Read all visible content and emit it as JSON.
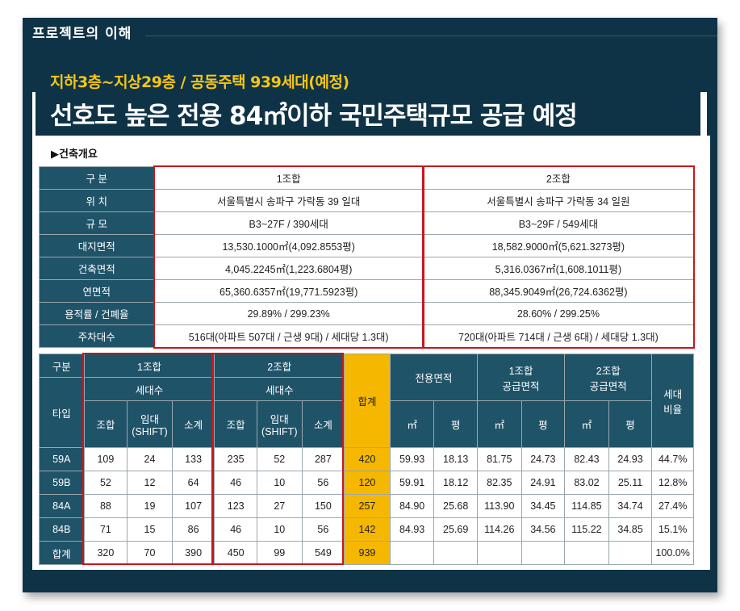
{
  "section_label": "프로젝트의 이해",
  "subtitle": "지하3층~지상29층 / 공동주택 939세대(예정)",
  "title": "선호도 높은 전용 84㎡이하 국민주택규모 공급 예정",
  "overview_heading": "▶건축개요",
  "overview": {
    "header": {
      "label": "구 분",
      "col1": "1조합",
      "col2": "2조합"
    },
    "rows": [
      {
        "label": "위 치",
        "col1": "서울특별시 송파구 가락동 39 일대",
        "col2": "서울특별시 송파구 가락동 34 일원"
      },
      {
        "label": "규 모",
        "col1": "B3~27F / 390세대",
        "col2": "B3~29F / 549세대"
      },
      {
        "label": "대지면적",
        "col1": "13,530.1000㎡(4,092.8553평)",
        "col2": "18,582.9000㎡(5,621.3273평)"
      },
      {
        "label": "건축면적",
        "col1": "4,045.2245㎡(1,223.6804평)",
        "col2": "5,316.0367㎡(1,608.1011평)"
      },
      {
        "label": "연면적",
        "col1": "65,360.6357㎡(19,771.5923평)",
        "col2": "88,345.9049㎡(26,724.6362평)"
      },
      {
        "label": "용적률 / 건폐율",
        "col1": "29.89% / 299.23%",
        "col2": "28.60% / 299.25%"
      },
      {
        "label": "주차대수",
        "col1": "516대(아파트 507대 / 근생 9대) / 세대당 1.3대)",
        "col2": "720대(아파트 714대 / 근생 6대) / 세대당 1.3대)"
      }
    ]
  },
  "units": {
    "h_gubun": "구분",
    "h_type": "타입",
    "h_u1": "1조합",
    "h_u2": "2조합",
    "h_households": "세대수",
    "h_total": "합계",
    "h_exclusive": "전용면적",
    "h_u1_supply_a": "1조합",
    "h_u1_supply_b": "공급면적",
    "h_u2_supply_a": "2조합",
    "h_u2_supply_b": "공급면적",
    "h_ratio_a": "세대",
    "h_ratio_b": "비율",
    "h_member": "조합",
    "h_rent_a": "임대",
    "h_rent_b": "(SHIFT)",
    "h_subtotal": "소계",
    "h_sqm": "㎡",
    "h_pyeong": "평",
    "rows": [
      {
        "type": "59A",
        "u1_m": "109",
        "u1_r": "24",
        "u1_s": "133",
        "u2_m": "235",
        "u2_r": "52",
        "u2_s": "287",
        "total": "420",
        "ex_sqm": "59.93",
        "ex_py": "18.13",
        "s1_sqm": "81.75",
        "s1_py": "24.73",
        "s2_sqm": "82.43",
        "s2_py": "24.93",
        "ratio": "44.7%"
      },
      {
        "type": "59B",
        "u1_m": "52",
        "u1_r": "12",
        "u1_s": "64",
        "u2_m": "46",
        "u2_r": "10",
        "u2_s": "56",
        "total": "120",
        "ex_sqm": "59.91",
        "ex_py": "18.12",
        "s1_sqm": "82.35",
        "s1_py": "24.91",
        "s2_sqm": "83.02",
        "s2_py": "25.11",
        "ratio": "12.8%"
      },
      {
        "type": "84A",
        "u1_m": "88",
        "u1_r": "19",
        "u1_s": "107",
        "u2_m": "123",
        "u2_r": "27",
        "u2_s": "150",
        "total": "257",
        "ex_sqm": "84.90",
        "ex_py": "25.68",
        "s1_sqm": "113.90",
        "s1_py": "34.45",
        "s2_sqm": "114.85",
        "s2_py": "34.74",
        "ratio": "27.4%"
      },
      {
        "type": "84B",
        "u1_m": "71",
        "u1_r": "15",
        "u1_s": "86",
        "u2_m": "46",
        "u2_r": "10",
        "u2_s": "56",
        "total": "142",
        "ex_sqm": "84.93",
        "ex_py": "25.69",
        "s1_sqm": "114.26",
        "s1_py": "34.56",
        "s2_sqm": "115.22",
        "s2_py": "34.85",
        "ratio": "15.1%"
      },
      {
        "type": "합계",
        "u1_m": "320",
        "u1_r": "70",
        "u1_s": "390",
        "u2_m": "450",
        "u2_r": "99",
        "u2_s": "549",
        "total": "939",
        "ex_sqm": "",
        "ex_py": "",
        "s1_sqm": "",
        "s1_py": "",
        "s2_sqm": "",
        "s2_py": "",
        "ratio": "100.0%"
      }
    ]
  },
  "colors": {
    "frame": "#0f3346",
    "header_cell": "#1f5368",
    "accent_gold": "#f6b700",
    "highlight_red": "#c8161d",
    "subtitle": "#f5c518"
  }
}
